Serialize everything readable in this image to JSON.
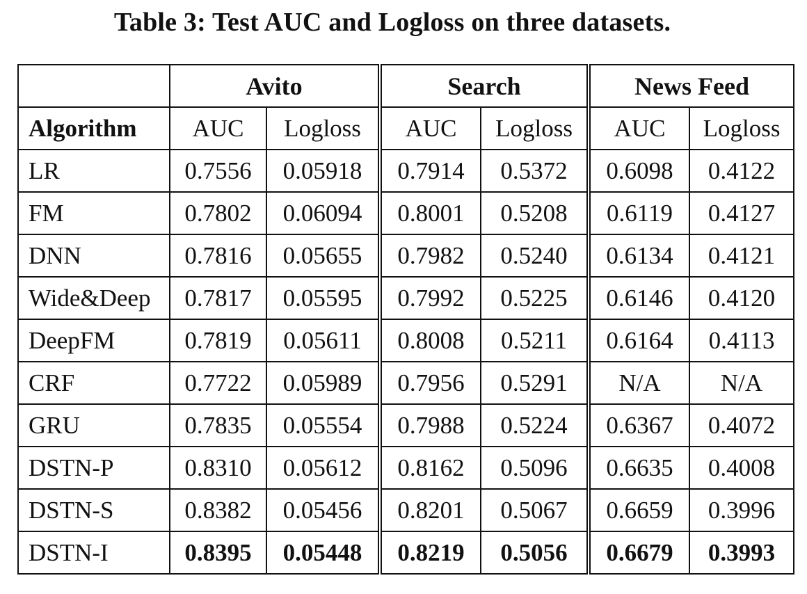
{
  "caption": "Table 3: Test AUC and Logloss on three datasets.",
  "table": {
    "algorithm_header": "Algorithm",
    "groups": [
      "Avito",
      "Search",
      "News Feed"
    ],
    "metrics": [
      "AUC",
      "Logloss",
      "AUC",
      "Logloss",
      "AUC",
      "Logloss"
    ],
    "rows": [
      {
        "name": "LR",
        "values": [
          "0.7556",
          "0.05918",
          "0.7914",
          "0.5372",
          "0.6098",
          "0.4122"
        ]
      },
      {
        "name": "FM",
        "values": [
          "0.7802",
          "0.06094",
          "0.8001",
          "0.5208",
          "0.6119",
          "0.4127"
        ]
      },
      {
        "name": "DNN",
        "values": [
          "0.7816",
          "0.05655",
          "0.7982",
          "0.5240",
          "0.6134",
          "0.4121"
        ]
      },
      {
        "name": "Wide&Deep",
        "values": [
          "0.7817",
          "0.05595",
          "0.7992",
          "0.5225",
          "0.6146",
          "0.4120"
        ]
      },
      {
        "name": "DeepFM",
        "values": [
          "0.7819",
          "0.05611",
          "0.8008",
          "0.5211",
          "0.6164",
          "0.4113"
        ]
      },
      {
        "name": "CRF",
        "values": [
          "0.7722",
          "0.05989",
          "0.7956",
          "0.5291",
          "N/A",
          "N/A"
        ]
      },
      {
        "name": "GRU",
        "values": [
          "0.7835",
          "0.05554",
          "0.7988",
          "0.5224",
          "0.6367",
          "0.4072"
        ]
      },
      {
        "name": "DSTN-P",
        "values": [
          "0.8310",
          "0.05612",
          "0.8162",
          "0.5096",
          "0.6635",
          "0.4008"
        ]
      },
      {
        "name": "DSTN-S",
        "values": [
          "0.8382",
          "0.05456",
          "0.8201",
          "0.5067",
          "0.6659",
          "0.3996"
        ]
      },
      {
        "name": "DSTN-I",
        "values": [
          "0.8395",
          "0.05448",
          "0.8219",
          "0.5056",
          "0.6679",
          "0.3993"
        ],
        "bold_values": true
      }
    ]
  }
}
